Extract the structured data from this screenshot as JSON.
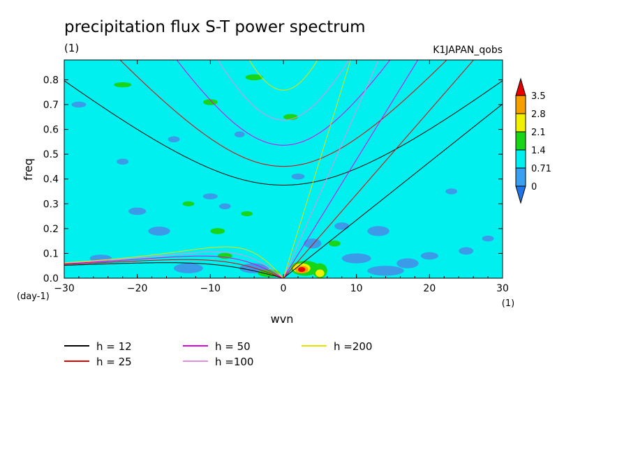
{
  "chart_data": {
    "type": "heatmap",
    "title": "precipitation flux S-T power spectrum",
    "subtitle_left": "(1)",
    "subtitle_right": "K1JAPAN_qobs",
    "xlabel": "wvn",
    "ylabel": "freq",
    "x_unit": "(1)",
    "y_unit": "(day-1)",
    "xlim": [
      -30,
      30
    ],
    "ylim": [
      0,
      0.88
    ],
    "x_ticks": [
      -30,
      -20,
      -10,
      0,
      10,
      20,
      30
    ],
    "x_tick_labels": [
      "−30",
      "−20",
      "−10",
      "0",
      "10",
      "20",
      "30"
    ],
    "y_ticks": [
      0,
      0.1,
      0.2,
      0.3,
      0.4,
      0.5,
      0.6,
      0.7,
      0.8
    ],
    "y_tick_labels": [
      "0.0",
      "0.1",
      "0.2",
      "0.3",
      "0.4",
      "0.5",
      "0.6",
      "0.7",
      "0.8"
    ],
    "colorbar": {
      "levels": [
        "0",
        "0.71",
        "1.4",
        "2.1",
        "2.8",
        "3.5"
      ],
      "colors": [
        "#1f74e8",
        "#3aa0ef",
        "#00f0f0",
        "#18d518",
        "#f0f000",
        "#f5a000",
        "#e80000"
      ]
    },
    "background_value_color": "#00f0f0",
    "patches": [
      {
        "level": "low",
        "x": -28,
        "y": 0.7,
        "rx": 1.0,
        "ry": 0.012
      },
      {
        "level": "low",
        "x": -25,
        "y": 0.08,
        "rx": 1.5,
        "ry": 0.015
      },
      {
        "level": "low",
        "x": -22,
        "y": 0.47,
        "rx": 0.8,
        "ry": 0.012
      },
      {
        "level": "low",
        "x": -20,
        "y": 0.27,
        "rx": 1.2,
        "ry": 0.015
      },
      {
        "level": "low",
        "x": -17,
        "y": 0.19,
        "rx": 1.5,
        "ry": 0.018
      },
      {
        "level": "low",
        "x": -15,
        "y": 0.56,
        "rx": 0.8,
        "ry": 0.012
      },
      {
        "level": "low",
        "x": -13,
        "y": 0.04,
        "rx": 2.0,
        "ry": 0.02
      },
      {
        "level": "low",
        "x": -10,
        "y": 0.33,
        "rx": 1.0,
        "ry": 0.012
      },
      {
        "level": "low",
        "x": -8,
        "y": 0.29,
        "rx": 0.8,
        "ry": 0.012
      },
      {
        "level": "low",
        "x": -6,
        "y": 0.58,
        "rx": 0.7,
        "ry": 0.012
      },
      {
        "level": "low",
        "x": -4,
        "y": 0.04,
        "rx": 2.0,
        "ry": 0.02
      },
      {
        "level": "low",
        "x": 2,
        "y": 0.41,
        "rx": 0.9,
        "ry": 0.012
      },
      {
        "level": "low",
        "x": 4,
        "y": 0.14,
        "rx": 1.2,
        "ry": 0.02
      },
      {
        "level": "low",
        "x": 8,
        "y": 0.21,
        "rx": 1.0,
        "ry": 0.015
      },
      {
        "level": "low",
        "x": 10,
        "y": 0.08,
        "rx": 2.0,
        "ry": 0.02
      },
      {
        "level": "low",
        "x": 13,
        "y": 0.19,
        "rx": 1.5,
        "ry": 0.02
      },
      {
        "level": "low",
        "x": 14,
        "y": 0.03,
        "rx": 2.5,
        "ry": 0.02
      },
      {
        "level": "low",
        "x": 17,
        "y": 0.06,
        "rx": 1.5,
        "ry": 0.02
      },
      {
        "level": "low",
        "x": 20,
        "y": 0.09,
        "rx": 1.2,
        "ry": 0.015
      },
      {
        "level": "low",
        "x": 23,
        "y": 0.35,
        "rx": 0.8,
        "ry": 0.012
      },
      {
        "level": "low",
        "x": 25,
        "y": 0.11,
        "rx": 1.0,
        "ry": 0.015
      },
      {
        "level": "low",
        "x": 28,
        "y": 0.16,
        "rx": 0.8,
        "ry": 0.012
      },
      {
        "level": "high",
        "x": -22,
        "y": 0.78,
        "rx": 1.2,
        "ry": 0.01
      },
      {
        "level": "high",
        "x": -13,
        "y": 0.3,
        "rx": 0.8,
        "ry": 0.01
      },
      {
        "level": "high",
        "x": -10,
        "y": 0.71,
        "rx": 1.0,
        "ry": 0.012
      },
      {
        "level": "high",
        "x": -9,
        "y": 0.19,
        "rx": 1.0,
        "ry": 0.012
      },
      {
        "level": "high",
        "x": -8,
        "y": 0.09,
        "rx": 1.0,
        "ry": 0.012
      },
      {
        "level": "high",
        "x": -5,
        "y": 0.26,
        "rx": 0.8,
        "ry": 0.01
      },
      {
        "level": "high",
        "x": -4,
        "y": 0.81,
        "rx": 1.2,
        "ry": 0.012
      },
      {
        "level": "high",
        "x": -2,
        "y": 0.02,
        "rx": 1.5,
        "ry": 0.015
      },
      {
        "level": "high",
        "x": 1,
        "y": 0.65,
        "rx": 1.0,
        "ry": 0.012
      },
      {
        "level": "high",
        "x": 3,
        "y": 0.04,
        "rx": 2.0,
        "ry": 0.03
      },
      {
        "level": "high",
        "x": 5,
        "y": 0.03,
        "rx": 1.0,
        "ry": 0.03
      },
      {
        "level": "high",
        "x": 7,
        "y": 0.14,
        "rx": 0.8,
        "ry": 0.012
      },
      {
        "level": "yellow",
        "x": 2.5,
        "y": 0.04,
        "rx": 1.2,
        "ry": 0.02
      },
      {
        "level": "yellow",
        "x": 5,
        "y": 0.02,
        "rx": 0.6,
        "ry": 0.015
      },
      {
        "level": "orange",
        "x": 2.5,
        "y": 0.035,
        "rx": 0.9,
        "ry": 0.015
      },
      {
        "level": "red",
        "x": 2.5,
        "y": 0.035,
        "rx": 0.5,
        "ry": 0.01
      }
    ],
    "dispersion_curves": [
      {
        "name": "h = 12",
        "h": 12,
        "color": "#000000"
      },
      {
        "name": "h = 25",
        "h": 25,
        "color": "#e00000"
      },
      {
        "name": "h = 50",
        "h": 50,
        "color": "#e000e0"
      },
      {
        "name": "h =100",
        "h": 100,
        "color": "#e090e0"
      },
      {
        "name": "h =200",
        "h": 200,
        "color": "#e8e000"
      }
    ],
    "legend_placement": "bottom"
  }
}
